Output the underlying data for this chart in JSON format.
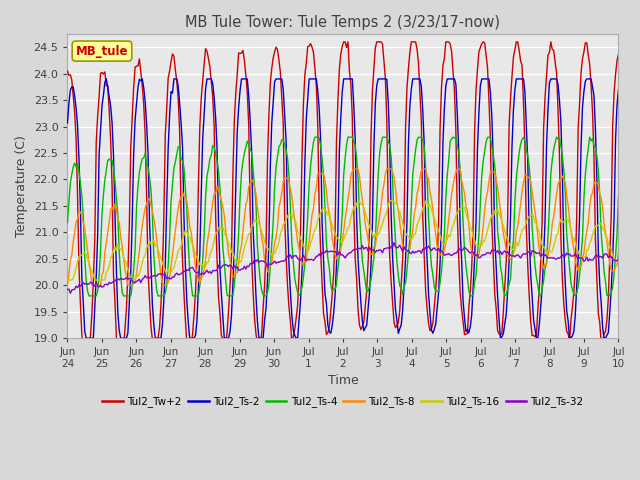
{
  "title": "MB Tule Tower: Tule Temps 2 (3/23/17-now)",
  "xlabel": "Time",
  "ylabel": "Temperature (C)",
  "ylim": [
    19.0,
    24.75
  ],
  "yticks": [
    19.0,
    19.5,
    20.0,
    20.5,
    21.0,
    21.5,
    22.0,
    22.5,
    23.0,
    23.5,
    24.0,
    24.5
  ],
  "x_tick_positions": [
    0,
    1,
    2,
    3,
    4,
    5,
    6,
    7,
    8,
    9,
    10,
    11,
    12,
    13,
    14,
    15,
    16
  ],
  "x_tick_labels": [
    "Jun\n24",
    "Jun\n25",
    "Jun\n26",
    "Jun\n27",
    "Jun\n28",
    "Jun\n29",
    "Jun\n30",
    "Jul\n1",
    "Jul\n2",
    "Jul\n3",
    "Jul\n4",
    "Jul\n5",
    "Jul\n6",
    "Jul\n7",
    "Jul\n8",
    "Jul\n9",
    "Jul\n10"
  ],
  "legend_label": "MB_tule",
  "series_names": [
    "Tul2_Tw+2",
    "Tul2_Ts-2",
    "Tul2_Ts-4",
    "Tul2_Ts-8",
    "Tul2_Ts-16",
    "Tul2_Ts-32"
  ],
  "series_colors": [
    "#cc0000",
    "#0000cc",
    "#00bb00",
    "#ff8800",
    "#cccc00",
    "#8800cc"
  ],
  "bg_color": "#d8d8d8",
  "plot_bg": "#e8e8e8",
  "grid_color": "#ffffff",
  "title_color": "#404040",
  "tick_label_color": "#404040",
  "n_days": 16,
  "pts_per_day": 24
}
